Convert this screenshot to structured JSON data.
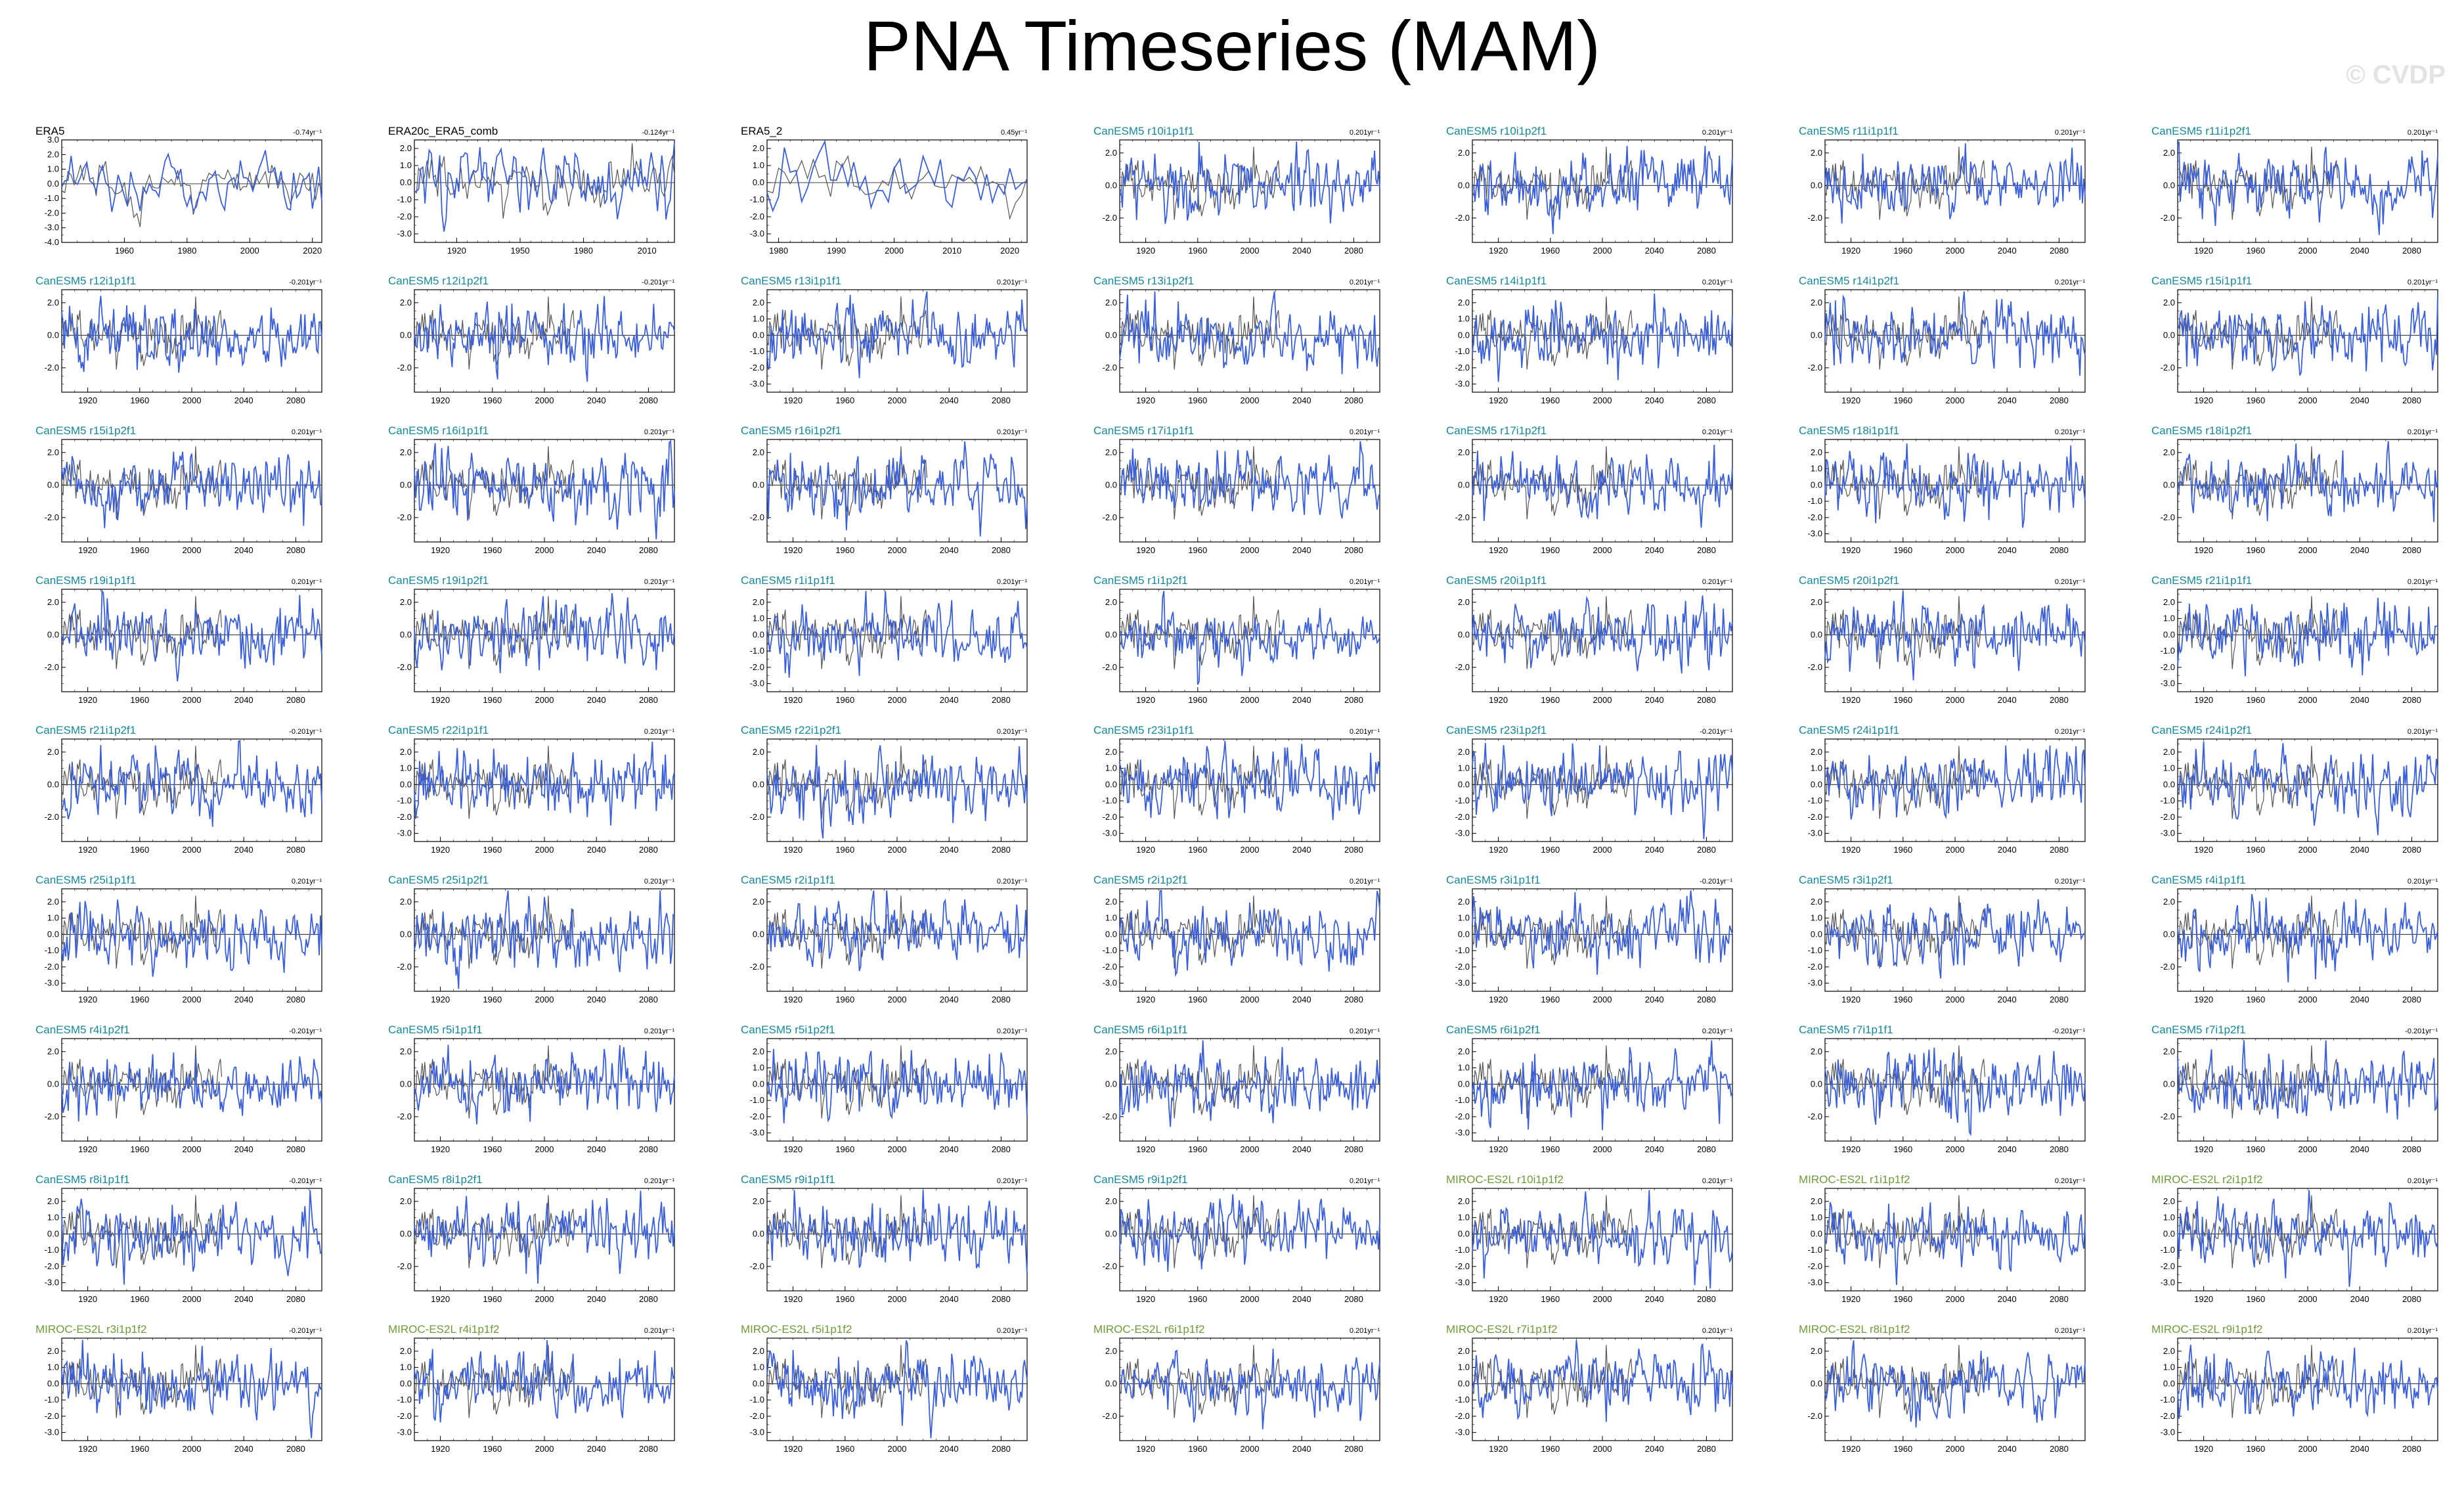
{
  "title": "PNA Timeseries (MAM)",
  "watermark": "© CVDP",
  "colors": {
    "series": "#3a5fd9",
    "reference": "#555555",
    "obs_title": "#000000",
    "canesm_title": "#17889a",
    "miroc_title": "#6e9a3a"
  },
  "chart_data": {
    "type": "line",
    "note_series": "each panel: blue = member PNA timeseries, grey = observational reference",
    "panels": [
      {
        "label": "ERA5",
        "trend": "-0.74yr⁻¹",
        "group": "obs",
        "xlim": [
          1940,
          2023
        ],
        "xticks": [
          1960,
          1980,
          2000,
          2020
        ],
        "ylim": [
          -4,
          3
        ],
        "yticks": [
          "3.0",
          "2.0",
          "1.0",
          "0.0",
          "-1.0",
          "-2.0",
          "-3.0",
          "-4.0"
        ]
      },
      {
        "label": "ERA20c_ERA5_comb",
        "trend": "-0.124yr⁻¹",
        "group": "obs",
        "xlim": [
          1900,
          2023
        ],
        "xticks": [
          1920,
          1950,
          1980,
          2010
        ],
        "ylim": [
          -3.5,
          2.5
        ],
        "yticks": [
          "2.0",
          "1.0",
          "0.0",
          "-1.0",
          "-2.0",
          "-3.0"
        ]
      },
      {
        "label": "ERA5_2",
        "trend": "0.45yr⁻¹",
        "group": "obs",
        "xlim": [
          1978,
          2023
        ],
        "xticks": [
          1980,
          1990,
          2000,
          2010,
          2020
        ],
        "ylim": [
          -3.5,
          2.5
        ],
        "yticks": [
          "2.0",
          "1.0",
          "0.0",
          "-1.0",
          "-2.0",
          "-3.0"
        ]
      },
      {
        "label": "CanESM5 r10i1p1f1",
        "trend": "0.201yr⁻¹",
        "group": "canesm",
        "yticks": [
          "2.0",
          "0.0",
          "-2.0"
        ]
      },
      {
        "label": "CanESM5 r10i1p2f1",
        "trend": "0.201yr⁻¹",
        "group": "canesm",
        "yticks": [
          "2.0",
          "0.0",
          "-2.0"
        ]
      },
      {
        "label": "CanESM5 r11i1p1f1",
        "trend": "0.201yr⁻¹",
        "group": "canesm",
        "yticks": [
          "2.0",
          "0.0",
          "-2.0"
        ]
      },
      {
        "label": "CanESM5 r11i1p2f1",
        "trend": "0.201yr⁻¹",
        "group": "canesm",
        "yticks": [
          "2.0",
          "0.0",
          "-2.0"
        ]
      },
      {
        "label": "CanESM5 r12i1p1f1",
        "trend": "-0.201yr⁻¹",
        "group": "canesm",
        "yticks": [
          "2.0",
          "0.0",
          "-2.0"
        ]
      },
      {
        "label": "CanESM5 r12i1p2f1",
        "trend": "-0.201yr⁻¹",
        "group": "canesm",
        "yticks": [
          "2.0",
          "0.0",
          "-2.0"
        ]
      },
      {
        "label": "CanESM5 r13i1p1f1",
        "trend": "0.201yr⁻¹",
        "group": "canesm",
        "yticks": [
          "2.0",
          "1.0",
          "0.0",
          "-1.0",
          "-2.0",
          "-3.0"
        ]
      },
      {
        "label": "CanESM5 r13i1p2f1",
        "trend": "0.201yr⁻¹",
        "group": "canesm",
        "yticks": [
          "2.0",
          "0.0",
          "-2.0"
        ]
      },
      {
        "label": "CanESM5 r14i1p1f1",
        "trend": "0.201yr⁻¹",
        "group": "canesm",
        "yticks": [
          "2.0",
          "1.0",
          "0.0",
          "-1.0",
          "-2.0",
          "-3.0"
        ]
      },
      {
        "label": "CanESM5 r14i1p2f1",
        "trend": "0.201yr⁻¹",
        "group": "canesm",
        "yticks": [
          "2.0",
          "0.0",
          "-2.0"
        ]
      },
      {
        "label": "CanESM5 r15i1p1f1",
        "trend": "0.201yr⁻¹",
        "group": "canesm",
        "yticks": [
          "2.0",
          "0.0",
          "-2.0"
        ]
      },
      {
        "label": "CanESM5 r15i1p2f1",
        "trend": "0.201yr⁻¹",
        "group": "canesm",
        "yticks": [
          "2.0",
          "0.0",
          "-2.0"
        ]
      },
      {
        "label": "CanESM5 r16i1p1f1",
        "trend": "0.201yr⁻¹",
        "group": "canesm",
        "yticks": [
          "2.0",
          "0.0",
          "-2.0"
        ]
      },
      {
        "label": "CanESM5 r16i1p2f1",
        "trend": "0.201yr⁻¹",
        "group": "canesm",
        "yticks": [
          "2.0",
          "0.0",
          "-2.0"
        ]
      },
      {
        "label": "CanESM5 r17i1p1f1",
        "trend": "0.201yr⁻¹",
        "group": "canesm",
        "yticks": [
          "2.0",
          "0.0",
          "-2.0"
        ]
      },
      {
        "label": "CanESM5 r17i1p2f1",
        "trend": "0.201yr⁻¹",
        "group": "canesm",
        "yticks": [
          "2.0",
          "0.0",
          "-2.0"
        ]
      },
      {
        "label": "CanESM5 r18i1p1f1",
        "trend": "0.201yr⁻¹",
        "group": "canesm",
        "yticks": [
          "2.0",
          "1.0",
          "0.0",
          "-1.0",
          "-2.0",
          "-3.0"
        ]
      },
      {
        "label": "CanESM5 r18i1p2f1",
        "trend": "0.201yr⁻¹",
        "group": "canesm",
        "yticks": [
          "2.0",
          "0.0",
          "-2.0"
        ]
      },
      {
        "label": "CanESM5 r19i1p1f1",
        "trend": "0.201yr⁻¹",
        "group": "canesm",
        "yticks": [
          "2.0",
          "0.0",
          "-2.0"
        ]
      },
      {
        "label": "CanESM5 r19i1p2f1",
        "trend": "0.201yr⁻¹",
        "group": "canesm",
        "yticks": [
          "2.0",
          "0.0",
          "-2.0"
        ]
      },
      {
        "label": "CanESM5 r1i1p1f1",
        "trend": "0.201yr⁻¹",
        "group": "canesm",
        "yticks": [
          "2.0",
          "1.0",
          "0.0",
          "-1.0",
          "-2.0",
          "-3.0"
        ]
      },
      {
        "label": "CanESM5 r1i1p2f1",
        "trend": "0.201yr⁻¹",
        "group": "canesm",
        "yticks": [
          "2.0",
          "0.0",
          "-2.0"
        ]
      },
      {
        "label": "CanESM5 r20i1p1f1",
        "trend": "0.201yr⁻¹",
        "group": "canesm",
        "yticks": [
          "2.0",
          "0.0",
          "-2.0"
        ]
      },
      {
        "label": "CanESM5 r20i1p2f1",
        "trend": "0.201yr⁻¹",
        "group": "canesm",
        "yticks": [
          "2.0",
          "0.0",
          "-2.0"
        ]
      },
      {
        "label": "CanESM5 r21i1p1f1",
        "trend": "0.201yr⁻¹",
        "group": "canesm",
        "yticks": [
          "2.0",
          "1.0",
          "0.0",
          "-1.0",
          "-2.0",
          "-3.0"
        ]
      },
      {
        "label": "CanESM5 r21i1p2f1",
        "trend": "-0.201yr⁻¹",
        "group": "canesm",
        "yticks": [
          "2.0",
          "0.0",
          "-2.0"
        ]
      },
      {
        "label": "CanESM5 r22i1p1f1",
        "trend": "0.201yr⁻¹",
        "group": "canesm",
        "yticks": [
          "2.0",
          "1.0",
          "0.0",
          "-1.0",
          "-2.0",
          "-3.0"
        ]
      },
      {
        "label": "CanESM5 r22i1p2f1",
        "trend": "0.201yr⁻¹",
        "group": "canesm",
        "yticks": [
          "2.0",
          "0.0",
          "-2.0"
        ]
      },
      {
        "label": "CanESM5 r23i1p1f1",
        "trend": "0.201yr⁻¹",
        "group": "canesm",
        "yticks": [
          "2.0",
          "1.0",
          "0.0",
          "-1.0",
          "-2.0",
          "-3.0"
        ]
      },
      {
        "label": "CanESM5 r23i1p2f1",
        "trend": "-0.201yr⁻¹",
        "group": "canesm",
        "yticks": [
          "2.0",
          "1.0",
          "0.0",
          "-1.0",
          "-2.0",
          "-3.0"
        ]
      },
      {
        "label": "CanESM5 r24i1p1f1",
        "trend": "0.201yr⁻¹",
        "group": "canesm",
        "yticks": [
          "2.0",
          "1.0",
          "0.0",
          "-1.0",
          "-2.0",
          "-3.0"
        ]
      },
      {
        "label": "CanESM5 r24i1p2f1",
        "trend": "0.201yr⁻¹",
        "group": "canesm",
        "yticks": [
          "2.0",
          "1.0",
          "0.0",
          "-1.0",
          "-2.0",
          "-3.0"
        ]
      },
      {
        "label": "CanESM5 r25i1p1f1",
        "trend": "0.201yr⁻¹",
        "group": "canesm",
        "yticks": [
          "2.0",
          "1.0",
          "0.0",
          "-1.0",
          "-2.0",
          "-3.0"
        ]
      },
      {
        "label": "CanESM5 r25i1p2f1",
        "trend": "0.201yr⁻¹",
        "group": "canesm",
        "yticks": [
          "2.0",
          "0.0",
          "-2.0"
        ]
      },
      {
        "label": "CanESM5 r2i1p1f1",
        "trend": "0.201yr⁻¹",
        "group": "canesm",
        "yticks": [
          "2.0",
          "0.0",
          "-2.0"
        ]
      },
      {
        "label": "CanESM5 r2i1p2f1",
        "trend": "0.201yr⁻¹",
        "group": "canesm",
        "yticks": [
          "2.0",
          "1.0",
          "0.0",
          "-1.0",
          "-2.0",
          "-3.0"
        ]
      },
      {
        "label": "CanESM5 r3i1p1f1",
        "trend": "-0.201yr⁻¹",
        "group": "canesm",
        "yticks": [
          "2.0",
          "1.0",
          "0.0",
          "-1.0",
          "-2.0",
          "-3.0"
        ]
      },
      {
        "label": "CanESM5 r3i1p2f1",
        "trend": "0.201yr⁻¹",
        "group": "canesm",
        "yticks": [
          "2.0",
          "1.0",
          "0.0",
          "-1.0",
          "-2.0",
          "-3.0"
        ]
      },
      {
        "label": "CanESM5 r4i1p1f1",
        "trend": "0.201yr⁻¹",
        "group": "canesm",
        "yticks": [
          "2.0",
          "0.0",
          "-2.0"
        ]
      },
      {
        "label": "CanESM5 r4i1p2f1",
        "trend": "-0.201yr⁻¹",
        "group": "canesm",
        "yticks": [
          "2.0",
          "0.0",
          "-2.0"
        ]
      },
      {
        "label": "CanESM5 r5i1p1f1",
        "trend": "0.201yr⁻¹",
        "group": "canesm",
        "yticks": [
          "2.0",
          "0.0",
          "-2.0"
        ]
      },
      {
        "label": "CanESM5 r5i1p2f1",
        "trend": "0.201yr⁻¹",
        "group": "canesm",
        "yticks": [
          "2.0",
          "1.0",
          "0.0",
          "-1.0",
          "-2.0",
          "-3.0"
        ]
      },
      {
        "label": "CanESM5 r6i1p1f1",
        "trend": "0.201yr⁻¹",
        "group": "canesm",
        "yticks": [
          "2.0",
          "0.0",
          "-2.0"
        ]
      },
      {
        "label": "CanESM5 r6i1p2f1",
        "trend": "0.201yr⁻¹",
        "group": "canesm",
        "yticks": [
          "2.0",
          "1.0",
          "0.0",
          "-1.0",
          "-2.0",
          "-3.0"
        ]
      },
      {
        "label": "CanESM5 r7i1p1f1",
        "trend": "-0.201yr⁻¹",
        "group": "canesm",
        "yticks": [
          "2.0",
          "0.0",
          "-2.0"
        ]
      },
      {
        "label": "CanESM5 r7i1p2f1",
        "trend": "-0.201yr⁻¹",
        "group": "canesm",
        "yticks": [
          "2.0",
          "0.0",
          "-2.0"
        ]
      },
      {
        "label": "CanESM5 r8i1p1f1",
        "trend": "-0.201yr⁻¹",
        "group": "canesm",
        "yticks": [
          "2.0",
          "1.0",
          "0.0",
          "-1.0",
          "-2.0",
          "-3.0"
        ]
      },
      {
        "label": "CanESM5 r8i1p2f1",
        "trend": "0.201yr⁻¹",
        "group": "canesm",
        "yticks": [
          "2.0",
          "0.0",
          "-2.0"
        ]
      },
      {
        "label": "CanESM5 r9i1p1f1",
        "trend": "0.201yr⁻¹",
        "group": "canesm",
        "yticks": [
          "2.0",
          "0.0",
          "-2.0"
        ]
      },
      {
        "label": "CanESM5 r9i1p2f1",
        "trend": "0.201yr⁻¹",
        "group": "canesm",
        "yticks": [
          "2.0",
          "0.0",
          "-2.0"
        ]
      },
      {
        "label": "MIROC-ES2L r10i1p1f2",
        "trend": "0.201yr⁻¹",
        "group": "miroc",
        "yticks": [
          "2.0",
          "1.0",
          "0.0",
          "-1.0",
          "-2.0",
          "-3.0"
        ]
      },
      {
        "label": "MIROC-ES2L r1i1p1f2",
        "trend": "0.201yr⁻¹",
        "group": "miroc",
        "yticks": [
          "2.0",
          "1.0",
          "0.0",
          "-1.0",
          "-2.0",
          "-3.0"
        ]
      },
      {
        "label": "MIROC-ES2L r2i1p1f2",
        "trend": "0.201yr⁻¹",
        "group": "miroc",
        "yticks": [
          "2.0",
          "1.0",
          "0.0",
          "-1.0",
          "-2.0",
          "-3.0"
        ]
      },
      {
        "label": "MIROC-ES2L r3i1p1f2",
        "trend": "-0.201yr⁻¹",
        "group": "miroc",
        "yticks": [
          "2.0",
          "1.0",
          "0.0",
          "-1.0",
          "-2.0",
          "-3.0"
        ]
      },
      {
        "label": "MIROC-ES2L r4i1p1f2",
        "trend": "0.201yr⁻¹",
        "group": "miroc",
        "yticks": [
          "2.0",
          "1.0",
          "0.0",
          "-1.0",
          "-2.0",
          "-3.0"
        ]
      },
      {
        "label": "MIROC-ES2L r5i1p1f2",
        "trend": "0.201yr⁻¹",
        "group": "miroc",
        "yticks": [
          "2.0",
          "1.0",
          "0.0",
          "-1.0",
          "-2.0",
          "-3.0"
        ]
      },
      {
        "label": "MIROC-ES2L r6i1p1f2",
        "trend": "0.201yr⁻¹",
        "group": "miroc",
        "yticks": [
          "2.0",
          "0.0",
          "-2.0"
        ]
      },
      {
        "label": "MIROC-ES2L r7i1p1f2",
        "trend": "0.201yr⁻¹",
        "group": "miroc",
        "yticks": [
          "2.0",
          "1.0",
          "0.0",
          "-1.0",
          "-2.0",
          "-3.0"
        ]
      },
      {
        "label": "MIROC-ES2L r8i1p1f2",
        "trend": "0.201yr⁻¹",
        "group": "miroc",
        "yticks": [
          "2.0",
          "0.0",
          "-2.0"
        ]
      },
      {
        "label": "MIROC-ES2L r9i1p1f2",
        "trend": "0.201yr⁻¹",
        "group": "miroc",
        "yticks": [
          "2.0",
          "1.0",
          "0.0",
          "-1.0",
          "-2.0",
          "-3.0"
        ]
      }
    ],
    "model_defaults": {
      "xlim": [
        1900,
        2100
      ],
      "xticks": [
        1920,
        1960,
        2000,
        2040,
        2080
      ],
      "ylim": [
        -3.5,
        2.8
      ]
    }
  }
}
